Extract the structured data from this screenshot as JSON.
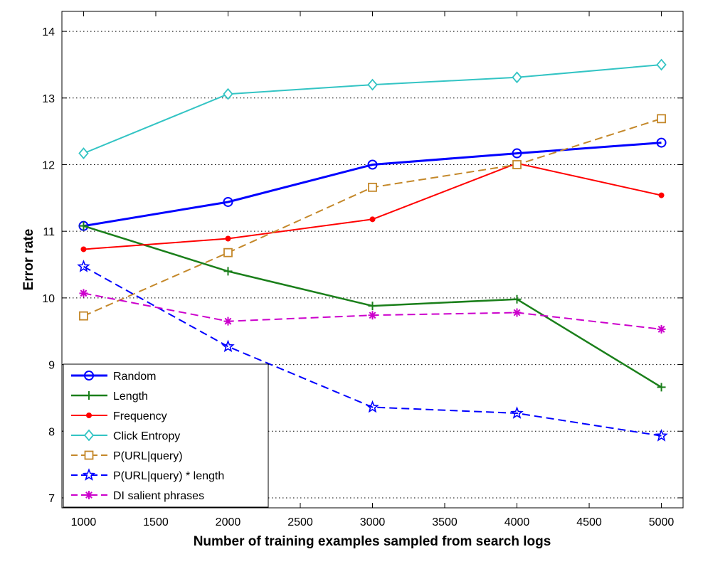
{
  "chart_data": {
    "type": "line",
    "title": "",
    "xlabel": "Number of training examples sampled from search logs",
    "ylabel": "Error rate",
    "xlim": [
      850,
      5150
    ],
    "ylim": [
      6.85,
      14.3
    ],
    "xticks": [
      1000,
      1500,
      2000,
      2500,
      3000,
      3500,
      4000,
      4500,
      5000
    ],
    "yticks": [
      7,
      8,
      9,
      10,
      11,
      12,
      13,
      14
    ],
    "grid": "horizontal dotted",
    "legend_position": "bottom-left",
    "x": [
      1000,
      2000,
      3000,
      4000,
      5000
    ],
    "series": [
      {
        "name": "Random",
        "values": [
          11.08,
          11.44,
          12.0,
          12.17,
          12.33
        ],
        "color": "#0000ff",
        "dash": "solid",
        "width": 3,
        "marker": "circle"
      },
      {
        "name": "Length",
        "values": [
          11.08,
          10.4,
          9.88,
          9.98,
          8.66
        ],
        "color": "#1a7f1a",
        "dash": "solid",
        "width": 2.5,
        "marker": "plus"
      },
      {
        "name": "Frequency",
        "values": [
          10.73,
          10.89,
          11.18,
          12.02,
          11.54
        ],
        "color": "#ff0000",
        "dash": "solid",
        "width": 2,
        "marker": "dot"
      },
      {
        "name": "Click Entropy",
        "values": [
          12.17,
          13.06,
          13.2,
          13.31,
          13.5
        ],
        "color": "#33c4c4",
        "dash": "solid",
        "width": 2,
        "marker": "diamond"
      },
      {
        "name": "P(URL|query)",
        "values": [
          9.73,
          10.68,
          11.66,
          12.0,
          12.69
        ],
        "color": "#c4882a",
        "dash": "dashed",
        "width": 2,
        "marker": "square"
      },
      {
        "name": "P(URL|query) * length",
        "values": [
          10.47,
          9.27,
          8.36,
          8.27,
          7.93
        ],
        "color": "#0000ff",
        "dash": "dashed",
        "width": 2,
        "marker": "star"
      },
      {
        "name": "DI salient phrases",
        "values": [
          10.07,
          9.65,
          9.74,
          9.78,
          9.53
        ],
        "color": "#cc00cc",
        "dash": "dashed",
        "width": 2,
        "marker": "asterisk"
      }
    ]
  }
}
